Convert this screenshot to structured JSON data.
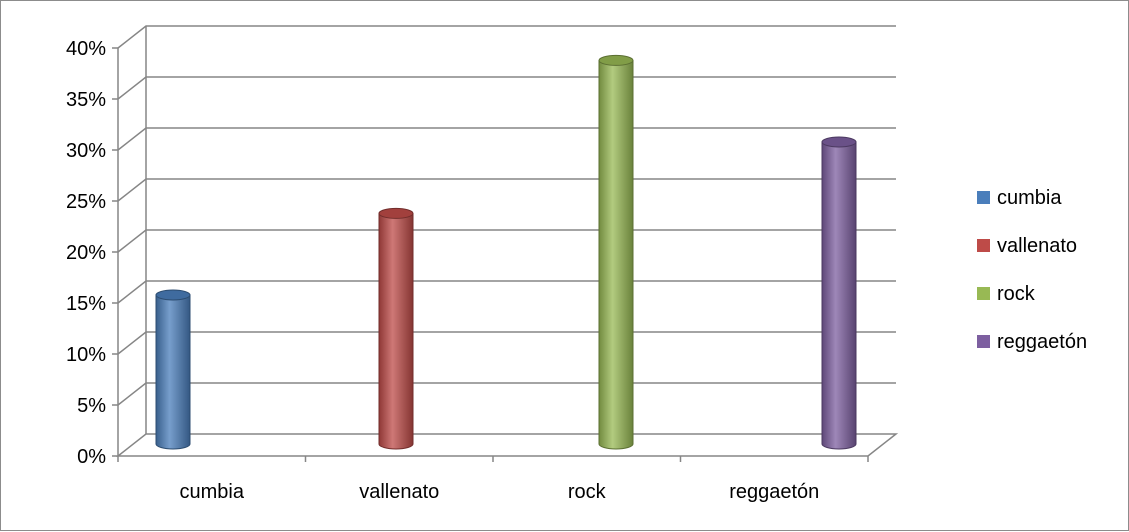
{
  "chart_data": {
    "type": "bar",
    "title": "",
    "xlabel": "",
    "ylabel": "",
    "categories": [
      "cumbia",
      "vallenato",
      "rock",
      "reggaetón"
    ],
    "series": [
      {
        "name": "cumbia",
        "category": "cumbia",
        "value": 15,
        "color": "#4a7ebb"
      },
      {
        "name": "vallenato",
        "category": "vallenato",
        "value": 23,
        "color": "#be4b48"
      },
      {
        "name": "rock",
        "category": "rock",
        "value": 38,
        "color": "#98b954"
      },
      {
        "name": "reggaetón",
        "category": "reggaetón",
        "value": 30,
        "color": "#7d5fa0"
      }
    ],
    "ylim": [
      0,
      40
    ],
    "yticks": [
      "0%",
      "5%",
      "10%",
      "15%",
      "20%",
      "25%",
      "30%",
      "35%",
      "40%"
    ],
    "grid": true,
    "style": "3d-cylinder",
    "legend_position": "right"
  }
}
